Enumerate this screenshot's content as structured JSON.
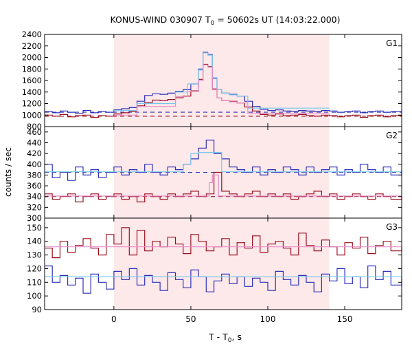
{
  "chart_data": {
    "type": "line",
    "title": "KONUS-WIND 030907 T",
    "title_sub": "0",
    "title_rest": " = 50602s UT (14:03:22.000)",
    "xlabel": "T - T",
    "xlabel_sub": "0",
    "xlabel_rest": ", s",
    "ylabel": "counts / sec",
    "xlim": [
      -45,
      187
    ],
    "x_ticks": [
      0,
      50,
      100,
      150
    ],
    "shaded_interval": [
      0,
      140
    ],
    "colors": {
      "shade": "#fde8ea",
      "blue": "#2b2fb8",
      "red": "#9a1020",
      "light_blue": "#78c8ec",
      "pink": "#e88fc8"
    },
    "panels": [
      {
        "name": "G1",
        "ylim": [
          800,
          2400
        ],
        "y_ticks": [
          800,
          1000,
          1200,
          1400,
          1600,
          1800,
          2000,
          2200,
          2400
        ],
        "background_levels": [
          {
            "series": "blue",
            "value": 1050,
            "style": "dashed"
          },
          {
            "series": "red",
            "value": 980,
            "style": "dashed"
          }
        ],
        "series": [
          {
            "color": "blue",
            "step_x": [
              -45,
              -40,
              -35,
              -30,
              -25,
              -20,
              -15,
              -10,
              -5,
              0,
              5,
              10,
              15,
              20,
              25,
              30,
              35,
              40,
              45,
              50,
              55,
              58,
              61,
              64,
              67,
              70,
              75,
              80,
              85,
              90,
              95,
              100,
              105,
              110,
              115,
              120,
              125,
              130,
              135,
              140,
              145,
              150,
              155,
              160,
              165,
              170,
              175,
              180,
              187
            ],
            "values": [
              1060,
              1040,
              1070,
              1050,
              1030,
              1080,
              1040,
              1060,
              1050,
              1090,
              1110,
              1130,
              1240,
              1340,
              1370,
              1360,
              1380,
              1410,
              1440,
              1540,
              1800,
              2090,
              2050,
              1640,
              1450,
              1380,
              1360,
              1330,
              1240,
              1150,
              1100,
              1080,
              1090,
              1070,
              1060,
              1080,
              1070,
              1060,
              1080,
              1070,
              1050,
              1060,
              1070,
              1040,
              1060,
              1070,
              1050,
              1060
            ]
          },
          {
            "color": "red",
            "step_x": [
              -45,
              -40,
              -35,
              -30,
              -25,
              -20,
              -15,
              -10,
              -5,
              0,
              5,
              10,
              15,
              20,
              25,
              30,
              35,
              40,
              45,
              50,
              55,
              58,
              61,
              64,
              67,
              70,
              75,
              80,
              85,
              90,
              95,
              100,
              105,
              110,
              115,
              120,
              125,
              130,
              135,
              140,
              145,
              150,
              155,
              160,
              165,
              170,
              175,
              180,
              187
            ],
            "values": [
              1000,
              980,
              1010,
              970,
              990,
              1000,
              960,
              990,
              980,
              1020,
              1040,
              1060,
              1160,
              1220,
              1260,
              1250,
              1270,
              1300,
              1330,
              1420,
              1620,
              1880,
              1840,
              1450,
              1300,
              1250,
              1240,
              1210,
              1140,
              1070,
              1010,
              1000,
              1020,
              990,
              1000,
              1010,
              990,
              980,
              1000,
              990,
              970,
              990,
              1000,
              960,
              990,
              1000,
              970,
              990
            ]
          },
          {
            "color": "light_blue",
            "step_x": [
              0,
              15,
              40,
              48,
              55,
              58,
              61,
              64,
              67,
              70,
              75,
              80,
              87,
              140
            ],
            "values": [
              1080,
              1200,
              1400,
              1540,
              1780,
              2080,
              2040,
              1650,
              1450,
              1380,
              1350,
              1330,
              1120
            ]
          },
          {
            "color": "pink",
            "step_x": [
              0,
              15,
              40,
              48,
              55,
              58,
              61,
              64,
              67,
              70,
              75,
              80,
              87,
              140
            ],
            "values": [
              1000,
              1150,
              1320,
              1410,
              1600,
              1870,
              1830,
              1460,
              1300,
              1250,
              1230,
              1210,
              1030
            ]
          }
        ]
      },
      {
        "name": "G2",
        "ylim": [
          300,
          470
        ],
        "y_ticks": [
          300,
          320,
          340,
          360,
          380,
          400,
          420,
          440,
          460
        ],
        "background_levels": [
          {
            "series": "blue",
            "value": 385,
            "style": "dashed"
          },
          {
            "series": "red",
            "value": 340,
            "style": "dashed"
          }
        ],
        "series": [
          {
            "color": "blue",
            "step_x": [
              -45,
              -40,
              -35,
              -30,
              -25,
              -20,
              -15,
              -10,
              -5,
              0,
              5,
              10,
              15,
              20,
              25,
              30,
              35,
              40,
              45,
              50,
              55,
              60,
              65,
              70,
              75,
              80,
              85,
              90,
              95,
              100,
              105,
              110,
              115,
              120,
              125,
              130,
              135,
              140,
              145,
              150,
              155,
              160,
              165,
              170,
              175,
              180,
              187
            ],
            "values": [
              400,
              375,
              385,
              370,
              395,
              380,
              390,
              375,
              385,
              395,
              380,
              390,
              385,
              400,
              385,
              380,
              395,
              390,
              400,
              410,
              430,
              445,
              420,
              410,
              395,
              390,
              385,
              395,
              380,
              390,
              385,
              395,
              390,
              380,
              395,
              385,
              390,
              395,
              380,
              390,
              385,
              400,
              390,
              385,
              395,
              380,
              390
            ]
          },
          {
            "color": "red",
            "step_x": [
              -45,
              -40,
              -35,
              -30,
              -25,
              -20,
              -15,
              -10,
              -5,
              0,
              5,
              10,
              15,
              20,
              25,
              30,
              35,
              40,
              45,
              50,
              55,
              60,
              65,
              70,
              75,
              80,
              85,
              90,
              95,
              100,
              105,
              110,
              115,
              120,
              125,
              130,
              135,
              140,
              145,
              150,
              155,
              160,
              165,
              170,
              175,
              180,
              187
            ],
            "values": [
              345,
              335,
              340,
              345,
              330,
              340,
              345,
              335,
              340,
              345,
              335,
              340,
              330,
              345,
              340,
              335,
              345,
              340,
              345,
              350,
              340,
              345,
              385,
              350,
              345,
              340,
              345,
              350,
              340,
              345,
              340,
              345,
              335,
              340,
              345,
              350,
              340,
              345,
              335,
              340,
              345,
              340,
              335,
              345,
              340,
              335,
              340
            ]
          },
          {
            "color": "light_blue",
            "step_x": [
              -45,
              45,
              50,
              55,
              70,
              187
            ],
            "values": [
              386,
              400,
              420,
              422,
              386
            ]
          },
          {
            "color": "pink",
            "step_x": [
              -45,
              62,
              64,
              68,
              187
            ],
            "values": [
              341,
              366,
              380,
              341
            ]
          }
        ]
      },
      {
        "name": "G3",
        "ylim": [
          90,
          157
        ],
        "y_ticks": [
          90,
          100,
          110,
          120,
          130,
          140,
          150
        ],
        "background_levels": [],
        "series": [
          {
            "color": "red",
            "step_x": [
              -45,
              -40,
              -35,
              -30,
              -25,
              -20,
              -15,
              -10,
              -5,
              0,
              5,
              10,
              15,
              20,
              25,
              30,
              35,
              40,
              45,
              50,
              55,
              60,
              65,
              70,
              75,
              80,
              85,
              90,
              95,
              100,
              105,
              110,
              115,
              120,
              125,
              130,
              135,
              140,
              145,
              150,
              155,
              160,
              165,
              170,
              175,
              180,
              187
            ],
            "values": [
              135,
              128,
              140,
              132,
              137,
              142,
              135,
              130,
              145,
              138,
              150,
              130,
              148,
              133,
              140,
              136,
              143,
              138,
              131,
              145,
              140,
              133,
              136,
              142,
              130,
              139,
              135,
              144,
              132,
              138,
              140,
              135,
              130,
              146,
              137,
              133,
              141,
              136,
              130,
              139,
              135,
              143,
              131,
              137,
              140,
              133,
              136
            ]
          },
          {
            "color": "blue",
            "step_x": [
              -45,
              -40,
              -35,
              -30,
              -25,
              -20,
              -15,
              -10,
              -5,
              0,
              5,
              10,
              15,
              20,
              25,
              30,
              35,
              40,
              45,
              50,
              55,
              60,
              65,
              70,
              75,
              80,
              85,
              90,
              95,
              100,
              105,
              110,
              115,
              120,
              125,
              130,
              135,
              140,
              145,
              150,
              155,
              160,
              165,
              170,
              175,
              180,
              187
            ],
            "values": [
              122,
              110,
              115,
              108,
              113,
              102,
              116,
              110,
              105,
              118,
              112,
              120,
              108,
              115,
              110,
              104,
              117,
              112,
              106,
              119,
              114,
              103,
              111,
              116,
              109,
              114,
              107,
              113,
              110,
              104,
              118,
              112,
              108,
              115,
              110,
              103,
              116,
              111,
              120,
              109,
              114,
              106,
              122,
              112,
              118,
              108,
              113
            ]
          },
          {
            "color": "pink",
            "step_x": [
              -45,
              187
            ],
            "values": [
              136
            ]
          },
          {
            "color": "light_blue",
            "step_x": [
              -45,
              187
            ],
            "values": [
              114
            ]
          }
        ]
      }
    ]
  }
}
